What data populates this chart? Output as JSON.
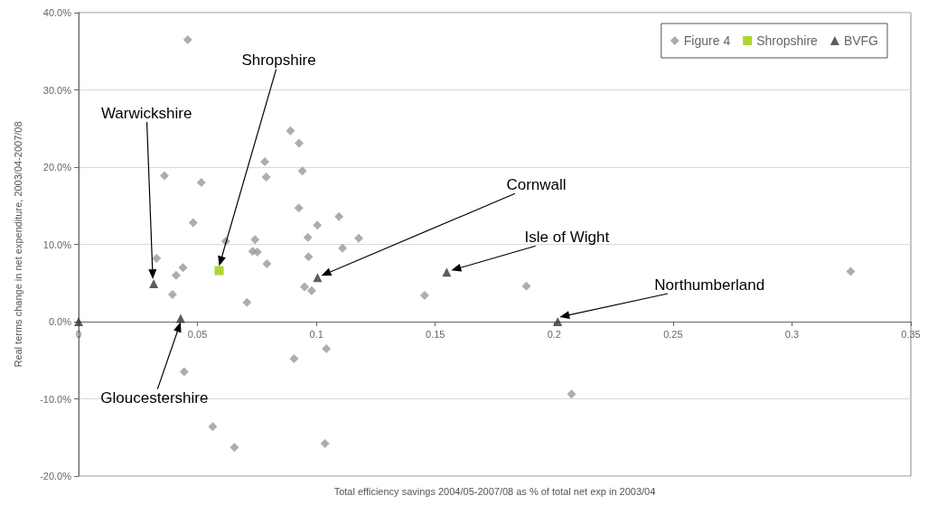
{
  "chart_data": {
    "type": "scatter",
    "xlabel": "Total efficiency savings 2004/05-2007/08 as % of total net exp in 2003/04",
    "ylabel": "Real terms change in net expenditure, 2003/04-2007/08",
    "xlim": [
      0,
      0.35
    ],
    "xticks": [
      0,
      0.05,
      0.1,
      0.15,
      0.2,
      0.25,
      0.3,
      0.35
    ],
    "ylim": [
      -20,
      40
    ],
    "yticks": [
      {
        "value": -20,
        "label": "-20.0%"
      },
      {
        "value": -10,
        "label": "-10.0%"
      },
      {
        "value": 0,
        "label": "0.0%"
      },
      {
        "value": 10,
        "label": "10.0%"
      },
      {
        "value": 20,
        "label": "20.0%"
      },
      {
        "value": 30,
        "label": "30.0%"
      },
      {
        "value": 40,
        "label": "40.0%"
      }
    ],
    "grid": "y",
    "legend": "top right",
    "series": [
      {
        "name": "Figure 4",
        "color": "#999999",
        "marker": "diamond",
        "x": [
          0.0459,
          0.0361,
          0.0516,
          0.0482,
          0.0891,
          0.0927,
          0.0783,
          0.0789,
          0.0941,
          0.0926,
          0.1095,
          0.1004,
          0.0964,
          0.1178,
          0.0619,
          0.0742,
          0.111,
          0.0328,
          0.0732,
          0.0752,
          0.0967,
          0.0439,
          0.041,
          0.0792,
          0.0395,
          0.0708,
          0.095,
          0.098,
          0.1042,
          0.0906,
          0.0444,
          0.0564,
          0.0655,
          0.1036,
          0.1455,
          0.1883,
          0.2073,
          0.3247
        ],
        "values": [
          36.5,
          18.9,
          18.0,
          12.8,
          24.7,
          23.1,
          20.7,
          18.7,
          19.5,
          14.7,
          13.6,
          12.5,
          10.9,
          10.8,
          10.4,
          10.6,
          9.5,
          8.2,
          9.1,
          9.0,
          8.4,
          7.0,
          6.0,
          7.5,
          3.5,
          2.5,
          4.5,
          4.0,
          -3.5,
          -4.8,
          -6.5,
          -13.6,
          -16.3,
          -15.8,
          3.4,
          4.6,
          -9.4,
          6.5
        ]
      },
      {
        "name": "Shropshire",
        "color": "#99cc00",
        "marker": "square",
        "x": [
          0.0591
        ],
        "values": [
          6.6
        ]
      },
      {
        "name": "BVFG",
        "color": "#333333",
        "marker": "triangle",
        "x": [
          0,
          0.0316,
          0.0429,
          0.1005,
          0.1548,
          0.2015
        ],
        "values": [
          0,
          4.9,
          0.4,
          5.7,
          6.4,
          0
        ]
      }
    ],
    "annotations": [
      "Warwickshire",
      "Shropshire",
      "Cornwall",
      "Isle of Wight",
      "Northumberland",
      "Gloucestershire"
    ]
  }
}
